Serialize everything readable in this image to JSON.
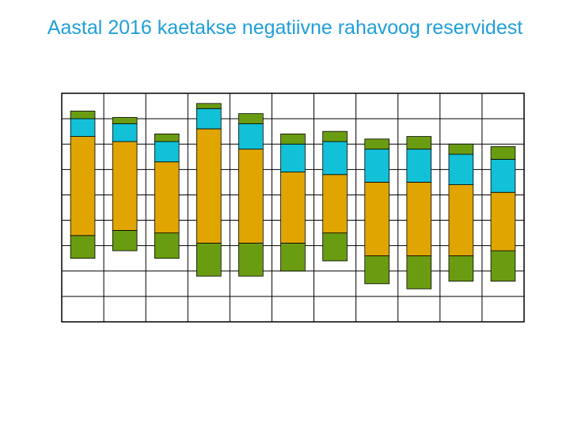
{
  "title": "Aastal 2016 kaetakse negatiivne rahavoog reservidest",
  "colors": {
    "title": "#1f9fd8",
    "green": "#6a9c12",
    "orange": "#e0a500",
    "cyan": "#12c0d8",
    "top_cap": "#6a9c12",
    "grid": "#000000",
    "background": "#ffffff"
  },
  "chart_data": {
    "type": "bar",
    "stacked": "floating",
    "title": "",
    "xlabel": "",
    "ylabel": "",
    "ylim": [
      0,
      9
    ],
    "grid": true,
    "legend": "none",
    "categories": [
      "",
      "",
      "",
      "",
      "",
      "",
      "",
      "",
      "",
      "",
      ""
    ],
    "bars": [
      {
        "segments": [
          {
            "color": "green",
            "from": 2.5,
            "to": 3.4
          },
          {
            "color": "orange",
            "from": 3.4,
            "to": 7.3
          },
          {
            "color": "cyan",
            "from": 7.3,
            "to": 8.0
          },
          {
            "color": "top_cap",
            "from": 8.0,
            "to": 8.3
          }
        ]
      },
      {
        "segments": [
          {
            "color": "green",
            "from": 2.8,
            "to": 3.6
          },
          {
            "color": "orange",
            "from": 3.6,
            "to": 7.1
          },
          {
            "color": "cyan",
            "from": 7.1,
            "to": 7.8
          },
          {
            "color": "top_cap",
            "from": 7.8,
            "to": 8.05
          }
        ]
      },
      {
        "segments": [
          {
            "color": "green",
            "from": 2.5,
            "to": 3.5
          },
          {
            "color": "orange",
            "from": 3.5,
            "to": 6.3
          },
          {
            "color": "cyan",
            "from": 6.3,
            "to": 7.1
          },
          {
            "color": "top_cap",
            "from": 7.1,
            "to": 7.4
          }
        ]
      },
      {
        "segments": [
          {
            "color": "green",
            "from": 1.8,
            "to": 3.1
          },
          {
            "color": "orange",
            "from": 3.1,
            "to": 7.6
          },
          {
            "color": "cyan",
            "from": 7.6,
            "to": 8.4
          },
          {
            "color": "top_cap",
            "from": 8.4,
            "to": 8.6
          }
        ]
      },
      {
        "segments": [
          {
            "color": "green",
            "from": 1.8,
            "to": 3.1
          },
          {
            "color": "orange",
            "from": 3.1,
            "to": 6.8
          },
          {
            "color": "cyan",
            "from": 6.8,
            "to": 7.8
          },
          {
            "color": "top_cap",
            "from": 7.8,
            "to": 8.2
          }
        ]
      },
      {
        "segments": [
          {
            "color": "green",
            "from": 2.0,
            "to": 3.1
          },
          {
            "color": "orange",
            "from": 3.1,
            "to": 5.9
          },
          {
            "color": "cyan",
            "from": 5.9,
            "to": 7.0
          },
          {
            "color": "top_cap",
            "from": 7.0,
            "to": 7.4
          }
        ]
      },
      {
        "segments": [
          {
            "color": "green",
            "from": 2.4,
            "to": 3.5
          },
          {
            "color": "orange",
            "from": 3.5,
            "to": 5.8
          },
          {
            "color": "cyan",
            "from": 5.8,
            "to": 7.1
          },
          {
            "color": "top_cap",
            "from": 7.1,
            "to": 7.5
          }
        ]
      },
      {
        "segments": [
          {
            "color": "green",
            "from": 1.5,
            "to": 2.6
          },
          {
            "color": "orange",
            "from": 2.6,
            "to": 5.5
          },
          {
            "color": "cyan",
            "from": 5.5,
            "to": 6.8
          },
          {
            "color": "top_cap",
            "from": 6.8,
            "to": 7.2
          }
        ]
      },
      {
        "segments": [
          {
            "color": "green",
            "from": 1.3,
            "to": 2.6
          },
          {
            "color": "orange",
            "from": 2.6,
            "to": 5.5
          },
          {
            "color": "cyan",
            "from": 5.5,
            "to": 6.8
          },
          {
            "color": "top_cap",
            "from": 6.8,
            "to": 7.3
          }
        ]
      },
      {
        "segments": [
          {
            "color": "green",
            "from": 1.6,
            "to": 2.6
          },
          {
            "color": "orange",
            "from": 2.6,
            "to": 5.4
          },
          {
            "color": "cyan",
            "from": 5.4,
            "to": 6.6
          },
          {
            "color": "top_cap",
            "from": 6.6,
            "to": 7.0
          }
        ]
      },
      {
        "segments": [
          {
            "color": "green",
            "from": 1.6,
            "to": 2.8
          },
          {
            "color": "orange",
            "from": 2.8,
            "to": 5.1
          },
          {
            "color": "cyan",
            "from": 5.1,
            "to": 6.4
          },
          {
            "color": "top_cap",
            "from": 6.4,
            "to": 6.9
          }
        ]
      }
    ]
  }
}
